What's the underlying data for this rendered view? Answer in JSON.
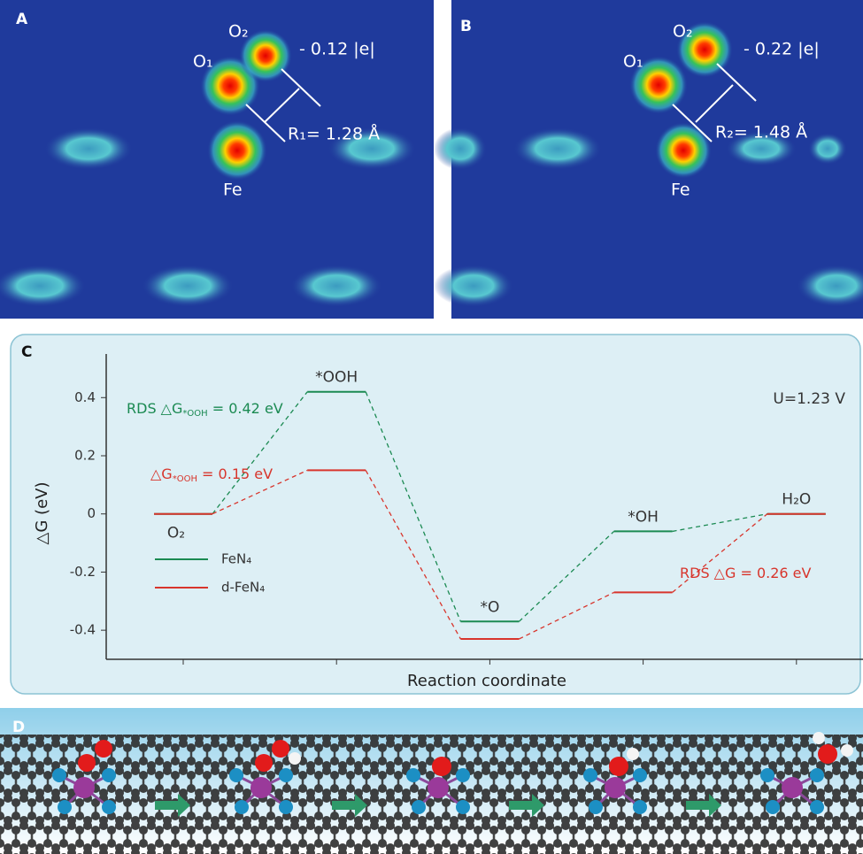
{
  "panels": {
    "a": {
      "label": "A",
      "o2": "O₂",
      "o1": "O₁",
      "fe": "Fe",
      "charge": "- 0.12 |e|",
      "distance": "R₁= 1.28 Å"
    },
    "b": {
      "label": "B",
      "o2": "O₂",
      "o1": "O₁",
      "fe": "Fe",
      "charge": "- 0.22 |e|",
      "distance": "R₂= 1.48 Å"
    },
    "c": {
      "label": "C"
    },
    "d": {
      "label": "D"
    }
  },
  "chart_data": {
    "type": "energy-levels",
    "ylabel": "△G (eV)",
    "xlabel": "Reaction coordinate",
    "categories": [
      "O₂",
      "*OOH",
      "*O",
      "*OH",
      "H₂O"
    ],
    "series": [
      {
        "name": "FeN₄",
        "color": "#1b8a52",
        "values": [
          0,
          0.42,
          -0.37,
          -0.06,
          0
        ]
      },
      {
        "name": "d-FeN₄",
        "color": "#d8352c",
        "values": [
          0,
          0.15,
          -0.43,
          -0.27,
          0
        ]
      }
    ],
    "ylim": [
      -0.5,
      0.55
    ],
    "yticks": [
      0.4,
      0.2,
      0,
      -0.2,
      -0.4
    ],
    "annotations": [
      {
        "parts": [
          "RDS △G",
          "*OOH",
          " = 0.42 eV"
        ],
        "color": "#1b8a52"
      },
      {
        "parts": [
          "△G",
          "*OOH",
          " = 0.15 eV"
        ],
        "color": "#d8352c"
      },
      {
        "parts": [
          "RDS △G = 0.26 eV"
        ],
        "color": "#d8352c"
      }
    ],
    "condition": "U=1.23 V"
  }
}
